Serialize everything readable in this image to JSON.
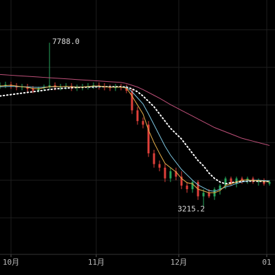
{
  "chart_data": {
    "type": "candlestick",
    "x": [
      0,
      2,
      4,
      6,
      8,
      10,
      12,
      14,
      16,
      18,
      20,
      22,
      24,
      26,
      28,
      30,
      32,
      34,
      36,
      38,
      40,
      42,
      44,
      46,
      48,
      50,
      52,
      54,
      56,
      58,
      60,
      62,
      64,
      66,
      68,
      70,
      72,
      74,
      76,
      78,
      80,
      82,
      84,
      86,
      88,
      90,
      92,
      94,
      96,
      98
    ],
    "open": [
      6580,
      6600,
      6620,
      6580,
      6540,
      6560,
      6500,
      6450,
      6520,
      6560,
      6600,
      6540,
      6560,
      6580,
      6520,
      6540,
      6560,
      6580,
      6600,
      6560,
      6540,
      6520,
      6560,
      6540,
      6450,
      5900,
      5600,
      5500,
      4700,
      4400,
      4300,
      4000,
      4200,
      4050,
      3800,
      3700,
      3900,
      3500,
      3600,
      3500,
      3700,
      3800,
      4000,
      3850,
      4000,
      3950,
      4000,
      3900,
      3950,
      3850
    ],
    "high": [
      6680,
      6700,
      6700,
      6660,
      6640,
      6640,
      6580,
      6560,
      6620,
      7788,
      6680,
      6640,
      6660,
      6660,
      6620,
      6640,
      6660,
      6680,
      6680,
      6660,
      6620,
      6640,
      6640,
      6620,
      6500,
      6000,
      5700,
      5600,
      4800,
      4500,
      4400,
      4300,
      4300,
      4200,
      3900,
      3950,
      3950,
      3700,
      3700,
      3750,
      3850,
      4050,
      4050,
      4050,
      4050,
      4050,
      4050,
      4000,
      4000,
      3950
    ],
    "low": [
      6500,
      6520,
      6500,
      6460,
      6460,
      6420,
      6380,
      6400,
      6440,
      6480,
      6460,
      6460,
      6480,
      6440,
      6440,
      6460,
      6480,
      6500,
      6480,
      6460,
      6440,
      6440,
      6460,
      6380,
      5800,
      5500,
      5400,
      4600,
      4300,
      4200,
      3900,
      3900,
      3950,
      3700,
      3600,
      3600,
      3400,
      3215.2,
      3450,
      3400,
      3550,
      3700,
      3800,
      3750,
      3850,
      3850,
      3850,
      3800,
      3800,
      3800
    ],
    "close": [
      6600,
      6620,
      6580,
      6540,
      6560,
      6500,
      6450,
      6520,
      6560,
      6600,
      6540,
      6560,
      6580,
      6520,
      6540,
      6560,
      6580,
      6600,
      6560,
      6540,
      6520,
      6560,
      6540,
      6450,
      5900,
      5600,
      5500,
      4700,
      4400,
      4300,
      4000,
      4200,
      4050,
      3800,
      3700,
      3900,
      3500,
      3600,
      3500,
      3700,
      3800,
      4000,
      3850,
      4000,
      3950,
      4000,
      3900,
      3950,
      3850,
      3900
    ],
    "up_color": "#26a65b",
    "down_color": "#e0403a",
    "lines": [
      {
        "color": "#c0507a",
        "style": "solid",
        "values": [
          6900,
          6890,
          6880,
          6870,
          6860,
          6850,
          6840,
          6830,
          6820,
          6810,
          6800,
          6790,
          6780,
          6770,
          6760,
          6750,
          6740,
          6730,
          6720,
          6710,
          6700,
          6690,
          6680,
          6650,
          6600,
          6550,
          6480,
          6400,
          6320,
          6240,
          6150,
          6060,
          5980,
          5900,
          5820,
          5740,
          5660,
          5580,
          5500,
          5420,
          5360,
          5300,
          5240,
          5180,
          5120,
          5080,
          5040,
          5000,
          4960,
          4920
        ]
      },
      {
        "color": "#ffffff",
        "style": "dotted",
        "values": [
          6300,
          6320,
          6340,
          6360,
          6380,
          6400,
          6420,
          6440,
          6460,
          6480,
          6500,
          6510,
          6520,
          6530,
          6540,
          6540,
          6550,
          6550,
          6560,
          6560,
          6560,
          6560,
          6560,
          6550,
          6500,
          6420,
          6300,
          6150,
          6000,
          5800,
          5600,
          5400,
          5250,
          5100,
          4900,
          4700,
          4500,
          4350,
          4150,
          4000,
          3900,
          3850,
          3880,
          3900,
          3920,
          3920,
          3930,
          3920,
          3920,
          3910
        ]
      },
      {
        "color": "#7ec8e3",
        "style": "solid",
        "values": [
          6560,
          6565,
          6570,
          6565,
          6560,
          6555,
          6545,
          6540,
          6545,
          6555,
          6560,
          6560,
          6565,
          6560,
          6555,
          6555,
          6560,
          6565,
          6565,
          6560,
          6555,
          6550,
          6550,
          6540,
          6420,
          6250,
          6080,
          5800,
          5500,
          5200,
          4900,
          4650,
          4450,
          4250,
          4100,
          3950,
          3820,
          3740,
          3660,
          3640,
          3700,
          3760,
          3800,
          3860,
          3900,
          3930,
          3950,
          3950,
          3940,
          3930
        ]
      },
      {
        "color": "#e8b04a",
        "style": "solid",
        "values": [
          6580,
          6590,
          6600,
          6580,
          6560,
          6540,
          6510,
          6500,
          6530,
          6560,
          6570,
          6560,
          6570,
          6560,
          6545,
          6550,
          6565,
          6580,
          6580,
          6560,
          6545,
          6545,
          6550,
          6520,
          6300,
          6050,
          5800,
          5350,
          5000,
          4700,
          4420,
          4300,
          4180,
          4000,
          3880,
          3850,
          3700,
          3650,
          3600,
          3600,
          3660,
          3800,
          3850,
          3900,
          3950,
          3960,
          3940,
          3940,
          3920,
          3900
        ]
      }
    ],
    "high_label": "7788.0",
    "low_label": "3215.2",
    "xlim": [
      0,
      100
    ],
    "xticks": [
      {
        "value": 4,
        "label": "10月"
      },
      {
        "value": 35,
        "label": "11月"
      },
      {
        "value": 65,
        "label": "12月"
      },
      {
        "value": 97,
        "label": "01"
      }
    ],
    "ylim": [
      1880,
      8980
    ],
    "yticks": [
      2900,
      3950,
      5000,
      6050,
      7100,
      8150
    ],
    "grid": true
  }
}
